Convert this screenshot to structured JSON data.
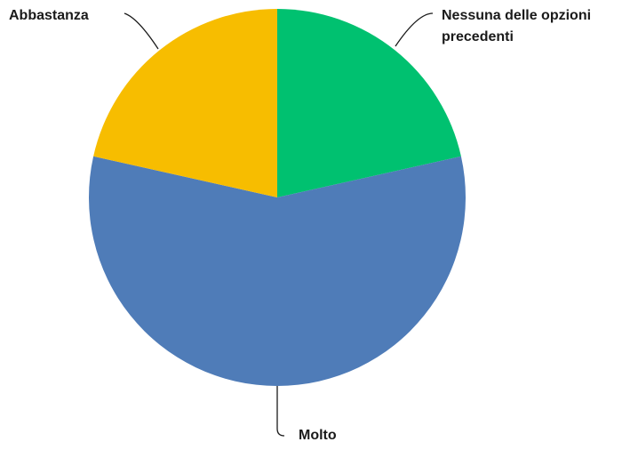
{
  "chart_data": {
    "type": "pie",
    "categories": [
      "Nessuna delle opzioni precedenti",
      "Molto",
      "Abbastanza"
    ],
    "values": [
      21.5,
      57,
      21.5
    ],
    "colors": [
      "#00c170",
      "#4f7cb8",
      "#f7bd00"
    ]
  }
}
